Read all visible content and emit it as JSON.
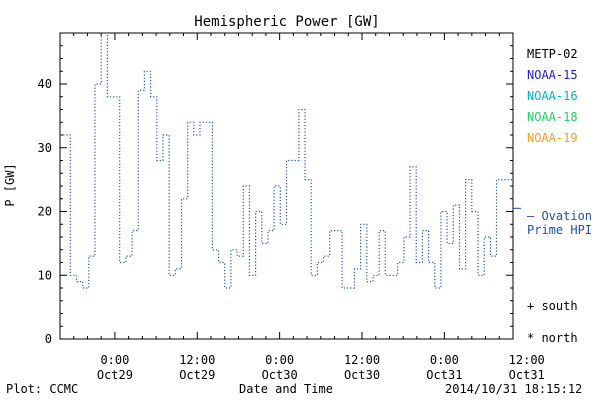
{
  "chart_data": {
    "type": "line",
    "title": "Hemispheric Power [GW]",
    "ylabel": "P [GW]",
    "xlabel": "Date and Time",
    "ylim": [
      0,
      48
    ],
    "yticks": [
      0,
      10,
      20,
      30,
      40
    ],
    "xlim_hours": [
      -8,
      58
    ],
    "xticks": [
      {
        "hour": 0,
        "line1": "0:00",
        "line2": "Oct29"
      },
      {
        "hour": 12,
        "line1": "12:00",
        "line2": "Oct29"
      },
      {
        "hour": 24,
        "line1": "0:00",
        "line2": "Oct30"
      },
      {
        "hour": 36,
        "line1": "12:00",
        "line2": "Oct30"
      },
      {
        "hour": 48,
        "line1": "0:00",
        "line2": "Oct31"
      },
      {
        "hour": 60,
        "line1": "12:00",
        "line2": "Oct31"
      }
    ],
    "legend": [
      {
        "name": "METP-02",
        "color": "#000000"
      },
      {
        "name": "NOAA-15",
        "color": "#2020c8"
      },
      {
        "name": "NOAA-16",
        "color": "#00b0d8"
      },
      {
        "name": "NOAA-18",
        "color": "#20d060"
      },
      {
        "name": "NOAA-19",
        "color": "#f0a020"
      }
    ],
    "ovation": {
      "label1": "— Ovation",
      "label2": "Prime HPI",
      "value": 20.5,
      "color": "#2050b0"
    },
    "markers_legend": [
      {
        "symbol": "+",
        "label": "south"
      },
      {
        "symbol": "*",
        "label": "north"
      }
    ],
    "series": [
      {
        "name": "Ovation Prime HPI",
        "color": "#2050b0",
        "x": [
          -8.0,
          -7.4,
          -6.5,
          -5.6,
          -4.7,
          -3.8,
          -2.9,
          -2.0,
          -1.1,
          -0.2,
          0.7,
          1.6,
          2.5,
          3.4,
          4.3,
          5.2,
          6.1,
          7.0,
          7.9,
          8.8,
          9.7,
          10.6,
          11.5,
          12.4,
          13.3,
          14.2,
          15.1,
          16.0,
          16.9,
          17.8,
          18.7,
          19.6,
          20.5,
          21.4,
          22.3,
          23.2,
          24.1,
          25.0,
          25.9,
          26.8,
          27.7,
          28.6,
          29.5,
          30.4,
          31.3,
          32.2,
          33.1,
          34.0,
          34.9,
          35.8,
          36.7,
          37.6,
          38.5,
          39.4,
          40.3,
          41.2,
          42.1,
          43.0,
          43.9,
          44.8,
          45.7,
          46.6,
          47.5,
          48.4,
          49.3,
          50.2,
          51.1,
          52.0,
          52.9,
          53.8,
          54.7,
          55.6,
          56.5,
          57.4
        ],
        "y": [
          32,
          32,
          10,
          9,
          8,
          13,
          40,
          48,
          38,
          38,
          12,
          13,
          17,
          39,
          42,
          38,
          28,
          32,
          10,
          11,
          22,
          34,
          32,
          34,
          34,
          14,
          12,
          8,
          14,
          13,
          24,
          10,
          20,
          15,
          17,
          24,
          18,
          28,
          28,
          36,
          25,
          10,
          12,
          13,
          17,
          17,
          8,
          8,
          11,
          18,
          9,
          10,
          17,
          10,
          10,
          12,
          16,
          27,
          12,
          17,
          12,
          8,
          20,
          15,
          21,
          11,
          25,
          20,
          10,
          16,
          13,
          25,
          25,
          25
        ]
      }
    ]
  },
  "footer": {
    "left": "Plot: CCMC",
    "timestamp": "2014/10/31  18:15:12"
  }
}
